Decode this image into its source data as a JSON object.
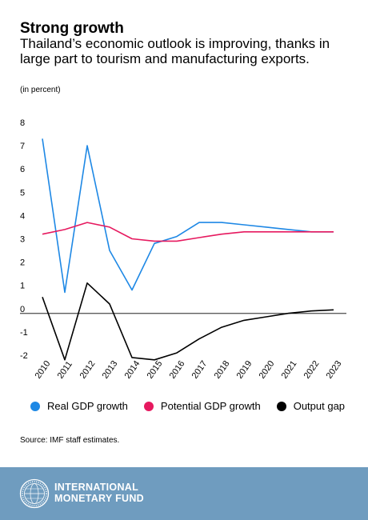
{
  "header": {
    "title": "Strong growth",
    "subtitle": "Thailand’s economic outlook is improving, thanks in large part to tourism and manufacturing exports.",
    "unit": "(in percent)"
  },
  "chart_data": {
    "type": "line",
    "x": [
      "2010",
      "2011",
      "2012",
      "2013",
      "2014",
      "2015",
      "2016",
      "2017",
      "2018",
      "2019",
      "2020",
      "2021",
      "2022",
      "2023"
    ],
    "ylim": [
      -2,
      8
    ],
    "yticks": [
      "8",
      "7",
      "6",
      "5",
      "4",
      "3",
      "2",
      "1",
      "0",
      "-1",
      "-2"
    ],
    "series": [
      {
        "name": "Real GDP growth",
        "color": "#1e88e5",
        "values": [
          7.3,
          0.7,
          7.0,
          2.5,
          0.8,
          2.8,
          3.1,
          3.7,
          3.7,
          3.6,
          3.5,
          3.4,
          3.3,
          3.3
        ]
      },
      {
        "name": "Potential GDP growth",
        "color": "#e6195f",
        "values": [
          3.2,
          3.4,
          3.7,
          3.5,
          3.0,
          2.9,
          2.9,
          3.05,
          3.2,
          3.3,
          3.3,
          3.3,
          3.3,
          3.3
        ]
      },
      {
        "name": "Output gap",
        "color": "#000000",
        "values": [
          0.5,
          -2.2,
          1.1,
          0.2,
          -2.1,
          -2.2,
          -1.9,
          -1.3,
          -0.8,
          -0.5,
          -0.35,
          -0.2,
          -0.1,
          -0.05
        ]
      }
    ],
    "grid": false,
    "legend": "bottom"
  },
  "legend": {
    "items": [
      {
        "label": "Real GDP growth",
        "color": "#1e88e5"
      },
      {
        "label": "Potential GDP growth",
        "color": "#e6195f"
      },
      {
        "label": "Output gap",
        "color": "#000000"
      }
    ]
  },
  "source": "Source: IMF staff estimates.",
  "footer": {
    "line1": "INTERNATIONAL",
    "line2": "MONETARY FUND",
    "background": "#6f9cbf"
  }
}
